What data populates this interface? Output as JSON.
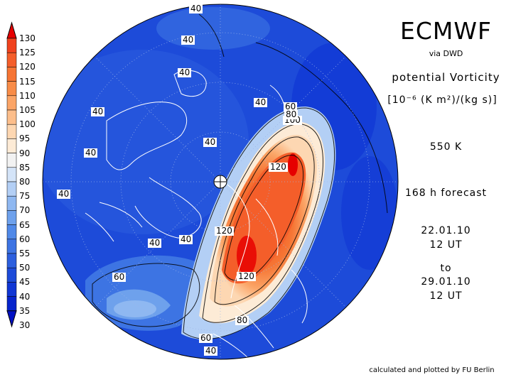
{
  "header": {
    "title": "ECMWF",
    "via": "via DWD",
    "parameter": "potential Vorticity",
    "units": "[10⁻⁶ (K m²)/(kg s)]",
    "level": "550 K",
    "forecast": "168 h forecast",
    "start_date": "22.01.10",
    "start_time": "12 UT",
    "to_label": "to",
    "end_date": "29.01.10",
    "end_time": "12 UT"
  },
  "credit": "calculated and plotted by FU Berlin",
  "legend": {
    "values": [
      "130",
      "125",
      "120",
      "115",
      "110",
      "105",
      "100",
      "95",
      "90",
      "85",
      "80",
      "75",
      "70",
      "65",
      "60",
      "55",
      "50",
      "45",
      "40",
      "35",
      "30"
    ],
    "colors": [
      "#e60000",
      "#f0421e",
      "#f45e2a",
      "#f67534",
      "#f88c48",
      "#fba567",
      "#fcbe8b",
      "#fdd7b2",
      "#fdebd6",
      "#f2f2f2",
      "#d4e4f8",
      "#b3cff5",
      "#8fb8f1",
      "#6ea1ec",
      "#5089e8",
      "#3d74e3",
      "#2c5fde",
      "#1d4bd9",
      "#1036d4",
      "#0624cc",
      "#0010c4"
    ]
  },
  "contour_labels": [
    {
      "text": "40",
      "name": "contour-label-40-top"
    },
    {
      "text": "40",
      "name": "contour-label-40-upper"
    },
    {
      "text": "40",
      "name": "contour-label-40-a"
    },
    {
      "text": "40",
      "name": "contour-label-40-b"
    },
    {
      "text": "40",
      "name": "contour-label-40-c"
    },
    {
      "text": "40",
      "name": "contour-label-40-d"
    },
    {
      "text": "40",
      "name": "contour-label-40-e"
    },
    {
      "text": "40",
      "name": "contour-label-40-f"
    },
    {
      "text": "40",
      "name": "contour-label-40-g"
    },
    {
      "text": "40",
      "name": "contour-label-40-h"
    },
    {
      "text": "60",
      "name": "contour-label-60-a"
    },
    {
      "text": "80",
      "name": "contour-label-80-a"
    },
    {
      "text": "100",
      "name": "contour-label-100"
    },
    {
      "text": "120",
      "name": "contour-label-120-a"
    },
    {
      "text": "120",
      "name": "contour-label-120-b"
    },
    {
      "text": "120",
      "name": "contour-label-120-c"
    },
    {
      "text": "60",
      "name": "contour-label-60-b"
    },
    {
      "text": "80",
      "name": "contour-label-80-b"
    },
    {
      "text": "60",
      "name": "contour-label-60-c"
    },
    {
      "text": "40",
      "name": "contour-label-40-bottom"
    }
  ]
}
